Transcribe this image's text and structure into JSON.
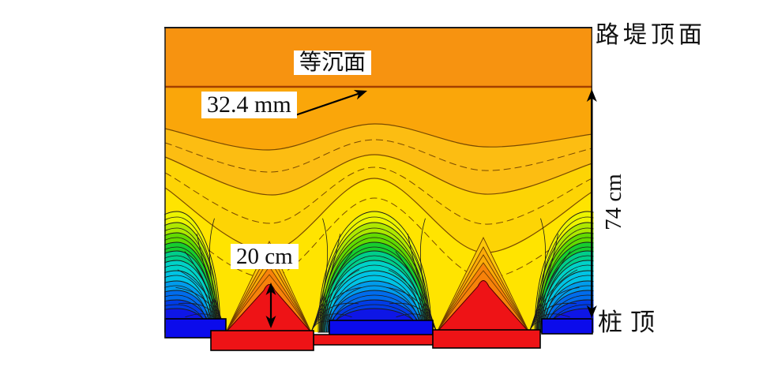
{
  "figure": {
    "labels": {
      "embankment_top": "路堤顶面",
      "equal_settlement_plane": "等沉面",
      "settlement_value": "32.4 mm",
      "height_above_pile": "74 cm",
      "cone_height": "20 cm",
      "pile_top": "桩顶"
    }
  },
  "chart_data": {
    "type": "heatmap",
    "subtype": "settlement-contour-cross-section",
    "title": "",
    "xlabel": "",
    "ylabel": "",
    "legend": false,
    "axes_visible": false,
    "annotations": [
      {
        "text": "路堤顶面",
        "position": "outside-top-right",
        "boxed": false
      },
      {
        "text": "等沉面",
        "position": "upper-center",
        "boxed": true
      },
      {
        "text": "32.4 mm",
        "position": "upper-left",
        "boxed": true,
        "arrow_to": "equal-settlement-plane-line"
      },
      {
        "text": "74 cm",
        "position": "right-edge",
        "orientation": "vertical",
        "dimension": "equal-settlement-plane to pile top"
      },
      {
        "text": "20 cm",
        "position": "above-left-pile-cone",
        "boxed": true,
        "dimension": "pile cone height"
      },
      {
        "text": "桩顶",
        "position": "outside-bottom-right",
        "boxed": false
      }
    ],
    "features": {
      "pile_cones_visible": 2,
      "soil_basins_visible": 3,
      "pile_caps_color": "red",
      "soil_between_piles_color": "blue",
      "uniform_band_above_equal_settlement_plane": true
    },
    "colors": {
      "band_top": "#F79310",
      "band2": "#FAA60A",
      "band3": "#FCBD12",
      "band4": "#FDD405",
      "fill_yellow": "#FFE400",
      "rings": [
        "#ECF400",
        "#AEE800",
        "#62DA00",
        "#16CE2E",
        "#00CE8A",
        "#00D2C8",
        "#00C4E4",
        "#009CEC",
        "#006CEC",
        "#003CE6",
        "#0E16E6"
      ],
      "halo_outer": "#FDC70A",
      "halo_mid": "#FBAB08",
      "halo_inner": "#F7820A",
      "pile_red": "#EE1316",
      "soil_blue": "#0B0BEB",
      "esp_line": "#A33F00",
      "contour_line": "#1b1b1b",
      "upper_line": "#7a4a00"
    }
  }
}
